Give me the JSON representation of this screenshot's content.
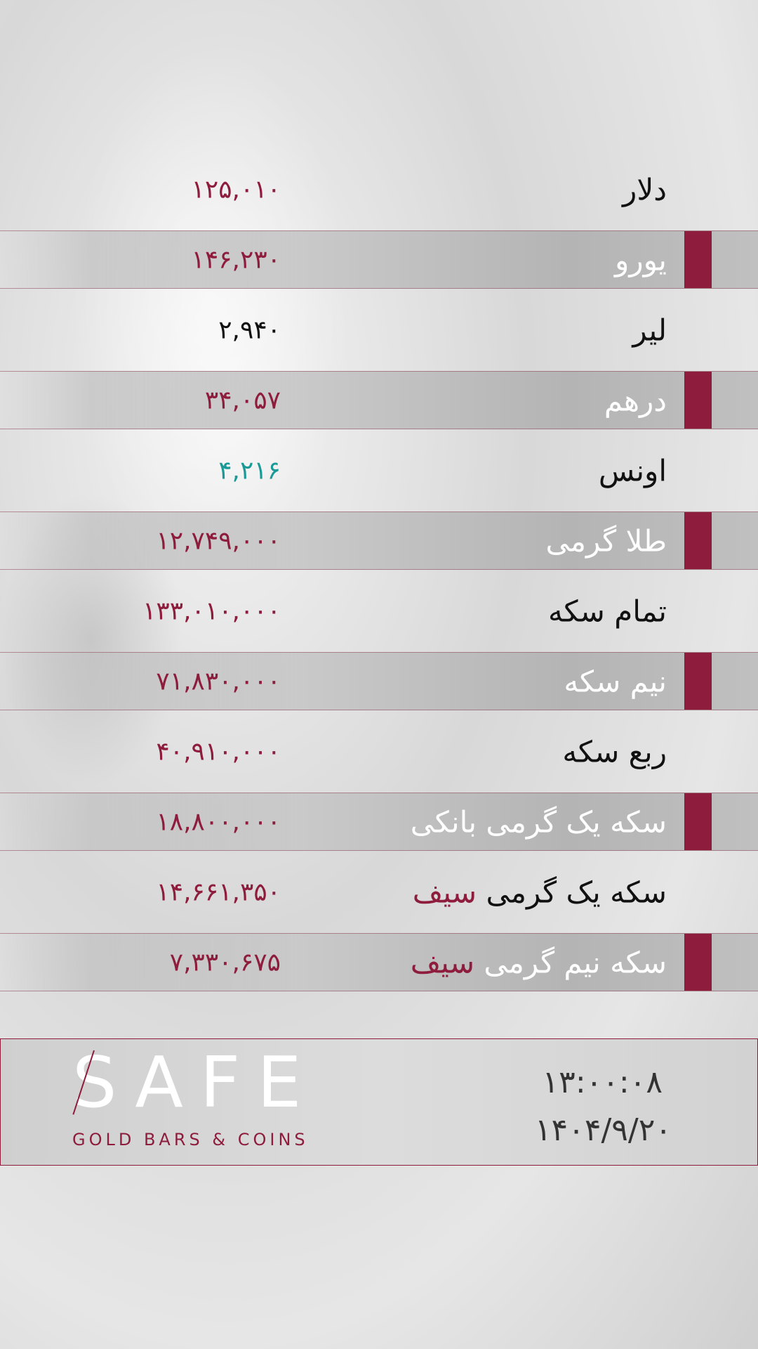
{
  "rates": [
    {
      "label": "دلار",
      "value": "۱۲۵,۰۱۰",
      "value_color": "#8e1c3c"
    },
    {
      "label": "یورو",
      "value": "۱۴۶,۲۳۰",
      "value_color": "#8e1c3c"
    },
    {
      "label": "لیر",
      "value": "۲,۹۴۰",
      "value_color": "#111111"
    },
    {
      "label": "درهم",
      "value": "۳۴,۰۵۷",
      "value_color": "#8e1c3c"
    },
    {
      "label": "اونس",
      "value": "۴,۲۱۶",
      "value_color": "#1a9a96"
    },
    {
      "label": "طلا گرمی",
      "value": "۱۲,۷۴۹,۰۰۰",
      "value_color": "#8e1c3c"
    },
    {
      "label": "تمام سکه",
      "value": "۱۳۳,۰۱۰,۰۰۰",
      "value_color": "#8e1c3c"
    },
    {
      "label": "نیم سکه",
      "value": "۷۱,۸۳۰,۰۰۰",
      "value_color": "#8e1c3c"
    },
    {
      "label": "ربع سکه",
      "value": "۴۰,۹۱۰,۰۰۰",
      "value_color": "#8e1c3c"
    },
    {
      "label": "سکه یک گرمی بانکی",
      "value": "۱۸,۸۰۰,۰۰۰",
      "value_color": "#8e1c3c"
    },
    {
      "label": "سکه یک گرمی",
      "label_highlight": "سیف",
      "value": "۱۴,۶۶۱,۳۵۰",
      "value_color": "#8e1c3c"
    },
    {
      "label": "سکه نیم گرمی",
      "label_highlight": "سیف",
      "value": "۷,۳۳۰,۶۷۵",
      "value_color": "#8e1c3c"
    }
  ],
  "footer": {
    "logo_text": "SAFE",
    "tagline": "GOLD BARS & COINS",
    "time": "۱۳:۰۰:۰۸",
    "date": "۱۴۰۴/۹/۲۰"
  },
  "colors": {
    "accent": "#8e1c3c",
    "teal": "#1a9a96"
  }
}
